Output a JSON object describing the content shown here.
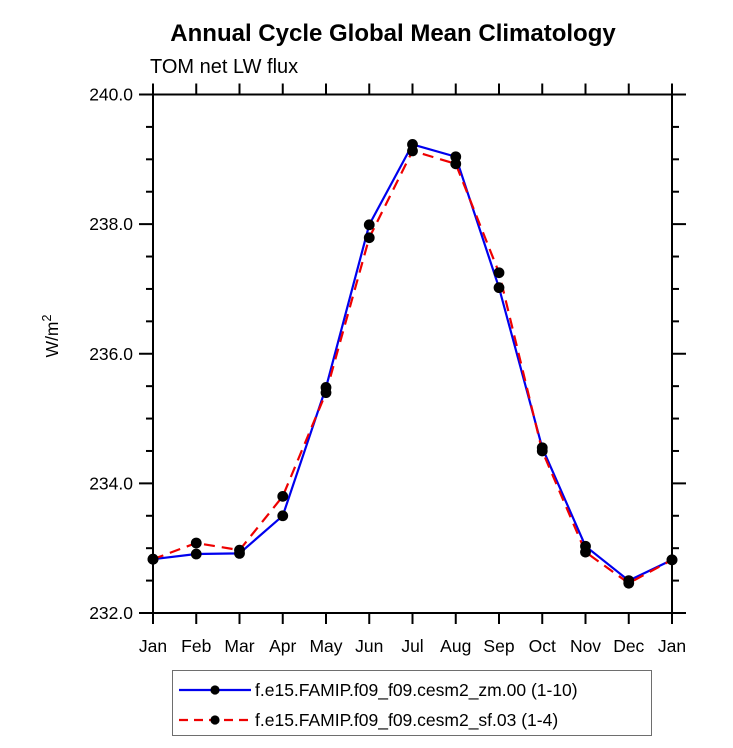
{
  "chart_data": {
    "type": "line",
    "title": "Annual Cycle Global Mean Climatology",
    "subtitle": "TOM net LW flux",
    "ylabel": "W/m",
    "ylabel_superscript": "2",
    "x_categories": [
      "Jan",
      "Feb",
      "Mar",
      "Apr",
      "May",
      "Jun",
      "Jul",
      "Aug",
      "Sep",
      "Oct",
      "Nov",
      "Dec",
      "Jan"
    ],
    "ylim": [
      232.0,
      240.0
    ],
    "ytick_major_values": [
      232.0,
      234.0,
      236.0,
      238.0,
      240.0
    ],
    "ytick_major_labels": [
      "232.0",
      "234.0",
      "236.0",
      "238.0",
      "240.0"
    ],
    "ytick_minor_step": 0.5,
    "grid": false,
    "frame": "box-with-outward-ticks",
    "legend_position": "bottom",
    "axis_color": "#000000",
    "series": [
      {
        "name": "f.e15.FAMIP.f09_f09.cesm2_zm.00 (1-10)",
        "color": "#0000ee",
        "style": "solid",
        "marker": "filled-circle",
        "marker_color": "#000000",
        "values": [
          232.83,
          232.91,
          232.92,
          233.5,
          235.48,
          237.99,
          239.23,
          239.04,
          237.02,
          234.55,
          233.03,
          232.5,
          232.82
        ]
      },
      {
        "name": "f.e15.FAMIP.f09_f09.cesm2_sf.03 (1-4)",
        "color": "#ee0000",
        "style": "dashed",
        "marker": "filled-circle",
        "marker_color": "#000000",
        "values": [
          232.83,
          233.08,
          232.97,
          233.8,
          235.4,
          237.79,
          239.13,
          238.93,
          237.25,
          234.5,
          232.94,
          232.46,
          232.82
        ]
      }
    ]
  }
}
